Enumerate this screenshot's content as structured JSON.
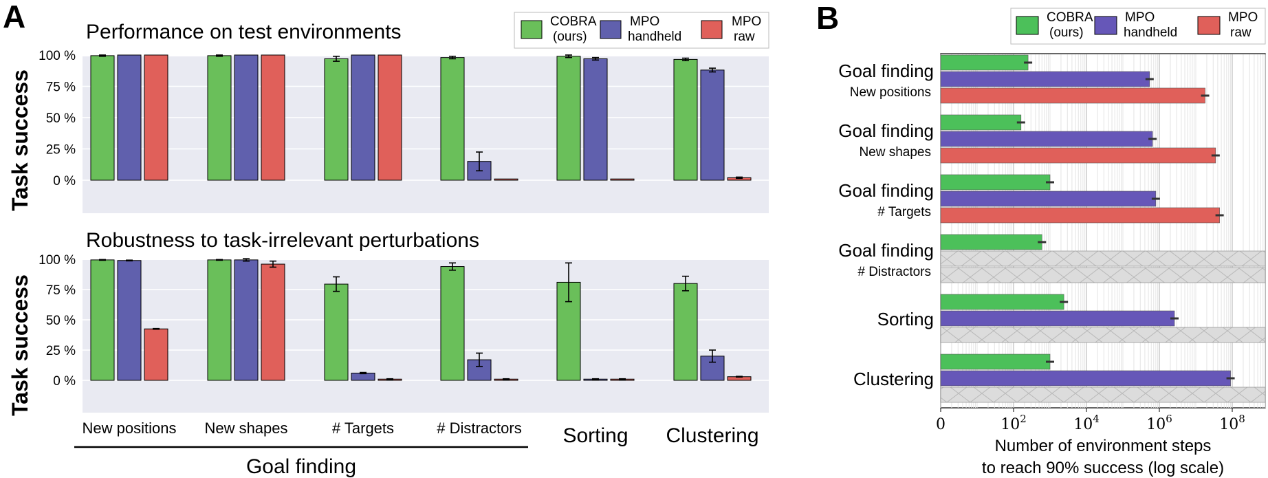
{
  "colors": {
    "cobra": "#6abf5a",
    "mpo_handheld": "#6060ad",
    "mpo_raw": "#e0605a",
    "panel_bg": "#e9eaf2",
    "hatch": "#d6d6d6"
  },
  "panel_a": {
    "letter": "A"
  },
  "panel_b": {
    "letter": "B"
  },
  "goal_finding_label": "Goal finding",
  "chart_data": [
    {
      "type": "bar",
      "title": "Performance on test environments",
      "ylabel": "Task success",
      "ylim": [
        0,
        100
      ],
      "yticks": [
        "0 %",
        "25 %",
        "50 %",
        "75 %",
        "100 %"
      ],
      "categories": [
        "New positions",
        "New shapes",
        "# Targets",
        "# Distractors",
        "Sorting",
        "Clustering"
      ],
      "legend": [
        "COBRA\n(ours)",
        "MPO\nhandheld",
        "MPO\nraw"
      ],
      "series": [
        {
          "name": "COBRA (ours)",
          "values": [
            99.5,
            99.5,
            97,
            98,
            99,
            96.5
          ],
          "errors": [
            0.5,
            0.5,
            2,
            1,
            1,
            1
          ]
        },
        {
          "name": "MPO handheld",
          "values": [
            100,
            100,
            100,
            15,
            97,
            88
          ],
          "errors": [
            0,
            0,
            0,
            7.5,
            1,
            1.5
          ]
        },
        {
          "name": "MPO raw",
          "values": [
            100,
            100,
            100,
            1,
            1,
            2
          ],
          "errors": [
            0,
            0,
            0,
            0,
            0,
            0.5
          ]
        }
      ]
    },
    {
      "type": "bar",
      "title": "Robustness to task-irrelevant perturbations",
      "ylabel": "Task success",
      "ylim": [
        0,
        100
      ],
      "yticks": [
        "0 %",
        "25 %",
        "50 %",
        "75 %",
        "100 %"
      ],
      "categories": [
        "New positions",
        "New shapes",
        "# Targets",
        "# Distractors",
        "Sorting",
        "Clustering"
      ],
      "series": [
        {
          "name": "COBRA (ours)",
          "values": [
            99.5,
            99.5,
            79.5,
            94,
            81,
            80
          ],
          "errors": [
            0.3,
            0.3,
            6,
            3,
            16,
            6
          ]
        },
        {
          "name": "MPO handheld",
          "values": [
            99,
            99.5,
            6,
            17,
            1,
            20
          ],
          "errors": [
            0.3,
            1,
            0.5,
            5.5,
            0.3,
            5
          ]
        },
        {
          "name": "MPO raw",
          "values": [
            42.5,
            96,
            1,
            1,
            1,
            3
          ],
          "errors": [
            0.3,
            2.5,
            0.3,
            0.3,
            0.3,
            0.3
          ]
        }
      ]
    },
    {
      "type": "bar",
      "orientation": "horizontal",
      "xlabel": "Number of environment steps\nto reach 90% success (log scale)",
      "xscale": "log",
      "xlim": [
        1,
        1000000000.0
      ],
      "xticks": [
        {
          "value": 1,
          "label": "0"
        },
        {
          "value": 100,
          "label": "10^2"
        },
        {
          "value": 10000,
          "label": "10^4"
        },
        {
          "value": 1000000,
          "label": "10^6"
        },
        {
          "value": 100000000,
          "label": "10^8"
        }
      ],
      "legend": [
        "COBRA\n(ours)",
        "MPO\nhandheld",
        "MPO\nraw"
      ],
      "categories": [
        {
          "main": "Goal finding",
          "sub": "New positions"
        },
        {
          "main": "Goal finding",
          "sub": "New shapes"
        },
        {
          "main": "Goal finding",
          "sub": "# Targets"
        },
        {
          "main": "Goal finding",
          "sub": "# Distractors"
        },
        {
          "main": "Sorting",
          "sub": ""
        },
        {
          "main": "Clustering",
          "sub": ""
        }
      ],
      "series": [
        {
          "name": "COBRA (ours)",
          "values": [
            250,
            160,
            1000,
            600,
            2400,
            1000
          ]
        },
        {
          "name": "MPO handheld",
          "values": [
            540000,
            650000,
            800000,
            null,
            2600000,
            90000000
          ]
        },
        {
          "name": "MPO raw",
          "values": [
            18000000,
            35000000,
            45000000,
            null,
            null,
            null
          ]
        }
      ]
    }
  ]
}
